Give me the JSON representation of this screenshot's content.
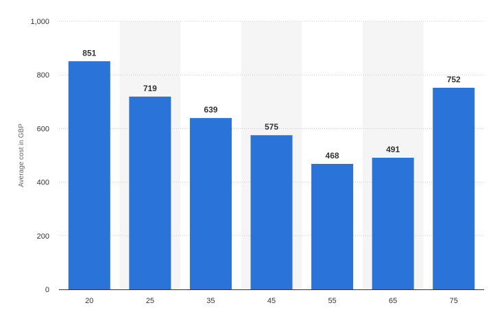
{
  "chart_data": {
    "type": "bar",
    "title": "",
    "xlabel": "",
    "ylabel": "Average cost in GBP",
    "categories": [
      "20",
      "25",
      "35",
      "45",
      "55",
      "65",
      "75"
    ],
    "values": [
      851,
      719,
      639,
      575,
      468,
      491,
      752
    ],
    "value_labels": [
      "851",
      "719",
      "639",
      "575",
      "468",
      "491",
      "752"
    ],
    "ylim": [
      0,
      1000
    ],
    "yticks": [
      0,
      200,
      400,
      600,
      800,
      1000
    ],
    "ytick_labels": [
      "0",
      "200",
      "400",
      "600",
      "800",
      "1,000"
    ],
    "grid": true,
    "grid_style": "dotted",
    "alternating_column_bands": true,
    "legend": "none",
    "colors": {
      "bar": "#2a73d9",
      "band": "#f5f5f5",
      "grid": "#cccccc",
      "axis": "#333333"
    }
  }
}
